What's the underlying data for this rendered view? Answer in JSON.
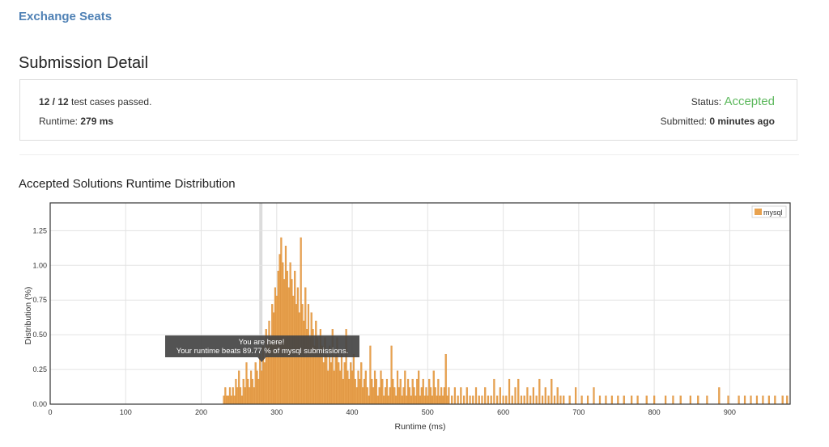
{
  "problem": {
    "title": "Exchange Seats"
  },
  "page": {
    "title": "Submission Detail"
  },
  "summary": {
    "test_cases_passed": "12 / 12",
    "test_cases_suffix": " test cases passed.",
    "runtime_label": "Runtime: ",
    "runtime_value": "279 ms",
    "status_label": "Status: ",
    "status_value": "Accepted",
    "submitted_label": "Submitted: ",
    "submitted_value": "0 minutes ago"
  },
  "distribution": {
    "title": "Accepted Solutions Runtime Distribution"
  },
  "colors": {
    "bar": "#e8a24f",
    "bar_stroke": "#d5852e",
    "accepted": "#5cb85c",
    "link": "#4f81b5"
  },
  "chart_data": {
    "type": "bar",
    "xlabel": "Runtime (ms)",
    "ylabel": "Distribution (%)",
    "xlim": [
      0,
      980
    ],
    "ylim": [
      0,
      1.45
    ],
    "xticks": [
      0,
      100,
      200,
      300,
      400,
      500,
      600,
      700,
      800,
      900
    ],
    "yticks": [
      "0.00",
      "0.25",
      "0.50",
      "0.75",
      "1.00",
      "1.25"
    ],
    "grid": true,
    "legend": "top-right",
    "series_name": "mysql",
    "highlight_runtime": 279,
    "tooltip": {
      "line1": "You are here!",
      "line2": "Your runtime beats 89.77 % of mysql submissions."
    },
    "bins": [
      [
        230,
        0.06
      ],
      [
        232,
        0.12
      ],
      [
        234,
        0.06
      ],
      [
        236,
        0.06
      ],
      [
        238,
        0.12
      ],
      [
        240,
        0.06
      ],
      [
        242,
        0.12
      ],
      [
        244,
        0.06
      ],
      [
        246,
        0.18
      ],
      [
        248,
        0.12
      ],
      [
        250,
        0.24
      ],
      [
        252,
        0.12
      ],
      [
        254,
        0.06
      ],
      [
        256,
        0.18
      ],
      [
        258,
        0.12
      ],
      [
        260,
        0.3
      ],
      [
        262,
        0.18
      ],
      [
        264,
        0.12
      ],
      [
        266,
        0.24
      ],
      [
        268,
        0.18
      ],
      [
        270,
        0.12
      ],
      [
        272,
        0.3
      ],
      [
        274,
        0.24
      ],
      [
        276,
        0.18
      ],
      [
        278,
        0.36
      ],
      [
        280,
        0.24
      ],
      [
        282,
        0.42
      ],
      [
        284,
        0.3
      ],
      [
        286,
        0.54
      ],
      [
        288,
        0.42
      ],
      [
        290,
        0.6
      ],
      [
        292,
        0.48
      ],
      [
        294,
        0.72
      ],
      [
        296,
        0.66
      ],
      [
        298,
        0.84
      ],
      [
        300,
        0.78
      ],
      [
        302,
        0.96
      ],
      [
        304,
        1.08
      ],
      [
        306,
        1.2
      ],
      [
        308,
        1.02
      ],
      [
        310,
        0.9
      ],
      [
        312,
        1.14
      ],
      [
        314,
        0.96
      ],
      [
        316,
        0.84
      ],
      [
        318,
        1.02
      ],
      [
        320,
        0.9
      ],
      [
        322,
        0.78
      ],
      [
        324,
        0.96
      ],
      [
        326,
        0.72
      ],
      [
        328,
        0.84
      ],
      [
        330,
        0.66
      ],
      [
        332,
        1.2
      ],
      [
        334,
        0.72
      ],
      [
        336,
        0.6
      ],
      [
        338,
        0.84
      ],
      [
        340,
        0.54
      ],
      [
        342,
        0.72
      ],
      [
        344,
        0.48
      ],
      [
        346,
        0.66
      ],
      [
        348,
        0.54
      ],
      [
        350,
        0.42
      ],
      [
        352,
        0.6
      ],
      [
        354,
        0.48
      ],
      [
        356,
        0.36
      ],
      [
        358,
        0.54
      ],
      [
        360,
        0.42
      ],
      [
        362,
        0.3
      ],
      [
        364,
        0.48
      ],
      [
        366,
        0.36
      ],
      [
        368,
        0.24
      ],
      [
        370,
        0.42
      ],
      [
        372,
        0.3
      ],
      [
        374,
        0.54
      ],
      [
        376,
        0.24
      ],
      [
        378,
        0.36
      ],
      [
        380,
        0.48
      ],
      [
        382,
        0.3
      ],
      [
        384,
        0.24
      ],
      [
        386,
        0.36
      ],
      [
        388,
        0.18
      ],
      [
        390,
        0.3
      ],
      [
        392,
        0.54
      ],
      [
        394,
        0.24
      ],
      [
        396,
        0.18
      ],
      [
        398,
        0.3
      ],
      [
        400,
        0.24
      ],
      [
        402,
        0.36
      ],
      [
        404,
        0.18
      ],
      [
        406,
        0.12
      ],
      [
        408,
        0.24
      ],
      [
        410,
        0.18
      ],
      [
        412,
        0.3
      ],
      [
        414,
        0.12
      ],
      [
        416,
        0.18
      ],
      [
        418,
        0.24
      ],
      [
        420,
        0.12
      ],
      [
        422,
        0.06
      ],
      [
        424,
        0.42
      ],
      [
        426,
        0.18
      ],
      [
        428,
        0.12
      ],
      [
        430,
        0.24
      ],
      [
        432,
        0.18
      ],
      [
        434,
        0.06
      ],
      [
        436,
        0.12
      ],
      [
        438,
        0.24
      ],
      [
        440,
        0.18
      ],
      [
        442,
        0.06
      ],
      [
        444,
        0.12
      ],
      [
        446,
        0.18
      ],
      [
        448,
        0.06
      ],
      [
        450,
        0.12
      ],
      [
        452,
        0.42
      ],
      [
        454,
        0.18
      ],
      [
        456,
        0.12
      ],
      [
        458,
        0.06
      ],
      [
        460,
        0.24
      ],
      [
        462,
        0.12
      ],
      [
        464,
        0.18
      ],
      [
        466,
        0.06
      ],
      [
        468,
        0.12
      ],
      [
        470,
        0.24
      ],
      [
        472,
        0.06
      ],
      [
        474,
        0.18
      ],
      [
        476,
        0.12
      ],
      [
        478,
        0.06
      ],
      [
        480,
        0.18
      ],
      [
        482,
        0.12
      ],
      [
        484,
        0.06
      ],
      [
        486,
        0.18
      ],
      [
        488,
        0.24
      ],
      [
        490,
        0.06
      ],
      [
        492,
        0.12
      ],
      [
        494,
        0.18
      ],
      [
        496,
        0.06
      ],
      [
        498,
        0.12
      ],
      [
        500,
        0.06
      ],
      [
        502,
        0.18
      ],
      [
        504,
        0.12
      ],
      [
        506,
        0.06
      ],
      [
        508,
        0.24
      ],
      [
        510,
        0.12
      ],
      [
        512,
        0.06
      ],
      [
        514,
        0.18
      ],
      [
        516,
        0.06
      ],
      [
        518,
        0.12
      ],
      [
        520,
        0.06
      ],
      [
        522,
        0.12
      ],
      [
        524,
        0.36
      ],
      [
        526,
        0.06
      ],
      [
        528,
        0.12
      ],
      [
        532,
        0.06
      ],
      [
        536,
        0.12
      ],
      [
        540,
        0.06
      ],
      [
        544,
        0.12
      ],
      [
        548,
        0.06
      ],
      [
        552,
        0.12
      ],
      [
        556,
        0.06
      ],
      [
        560,
        0.06
      ],
      [
        564,
        0.12
      ],
      [
        568,
        0.06
      ],
      [
        572,
        0.06
      ],
      [
        576,
        0.12
      ],
      [
        580,
        0.06
      ],
      [
        584,
        0.06
      ],
      [
        588,
        0.18
      ],
      [
        592,
        0.06
      ],
      [
        596,
        0.12
      ],
      [
        600,
        0.06
      ],
      [
        604,
        0.06
      ],
      [
        608,
        0.18
      ],
      [
        612,
        0.06
      ],
      [
        616,
        0.12
      ],
      [
        620,
        0.18
      ],
      [
        624,
        0.06
      ],
      [
        628,
        0.06
      ],
      [
        632,
        0.12
      ],
      [
        636,
        0.06
      ],
      [
        640,
        0.12
      ],
      [
        644,
        0.06
      ],
      [
        648,
        0.18
      ],
      [
        652,
        0.06
      ],
      [
        656,
        0.12
      ],
      [
        660,
        0.06
      ],
      [
        664,
        0.18
      ],
      [
        668,
        0.06
      ],
      [
        672,
        0.12
      ],
      [
        676,
        0.06
      ],
      [
        680,
        0.06
      ],
      [
        688,
        0.06
      ],
      [
        696,
        0.12
      ],
      [
        704,
        0.06
      ],
      [
        712,
        0.06
      ],
      [
        720,
        0.12
      ],
      [
        728,
        0.06
      ],
      [
        736,
        0.06
      ],
      [
        744,
        0.06
      ],
      [
        752,
        0.06
      ],
      [
        760,
        0.06
      ],
      [
        770,
        0.06
      ],
      [
        778,
        0.06
      ],
      [
        790,
        0.06
      ],
      [
        800,
        0.06
      ],
      [
        815,
        0.06
      ],
      [
        825,
        0.06
      ],
      [
        835,
        0.06
      ],
      [
        848,
        0.06
      ],
      [
        858,
        0.06
      ],
      [
        870,
        0.06
      ],
      [
        886,
        0.12
      ],
      [
        898,
        0.06
      ],
      [
        912,
        0.06
      ],
      [
        920,
        0.06
      ],
      [
        928,
        0.06
      ],
      [
        936,
        0.06
      ],
      [
        944,
        0.06
      ],
      [
        952,
        0.06
      ],
      [
        960,
        0.06
      ],
      [
        970,
        0.06
      ],
      [
        976,
        0.06
      ]
    ]
  }
}
